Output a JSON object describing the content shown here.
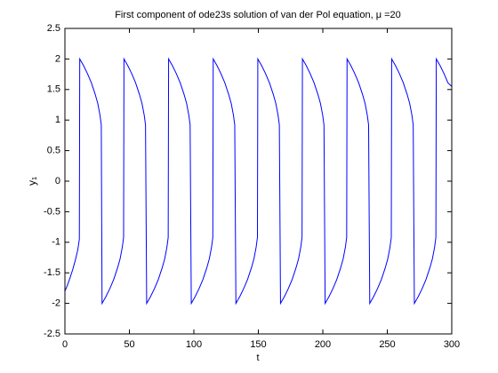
{
  "chart_data": {
    "type": "line",
    "title": "First component of ode23s solution of van der Pol equation, μ =20",
    "xlabel": "t",
    "ylabel": "y₁",
    "xlim": [
      0,
      300
    ],
    "xticks": [
      0,
      50,
      100,
      150,
      200,
      250,
      300
    ],
    "ylim": [
      -2.5,
      2.5
    ],
    "yticks": [
      -2.5,
      -2,
      -1.5,
      -1,
      -0.5,
      0,
      0.5,
      1,
      1.5,
      2,
      2.5
    ],
    "grid": false,
    "series": [
      {
        "name": "y1",
        "color": "#0000ff",
        "x": [
          0,
          2,
          4,
          6,
          8,
          10,
          11.2,
          11.5,
          14.5,
          17.5,
          20.5,
          23.5,
          25.5,
          27.2,
          28.2,
          28.8,
          31.8,
          34.8,
          37.8,
          40.8,
          42.8,
          44.5,
          45.5,
          45.8,
          48.8,
          51.8,
          54.8,
          57.8,
          59.8,
          61.5,
          62.5,
          63.4,
          66.4,
          69.4,
          72.4,
          75.4,
          77.4,
          79.1,
          80.1,
          80.4,
          83.4,
          86.4,
          89.4,
          92.4,
          94.4,
          96.1,
          97.1,
          98,
          101,
          104,
          107,
          110,
          112,
          113.7,
          114.7,
          115,
          118,
          121,
          124,
          127,
          129,
          130.7,
          131.7,
          132.6,
          135.6,
          138.6,
          141.6,
          144.6,
          146.6,
          148.3,
          149.3,
          149.6,
          152.6,
          155.6,
          158.6,
          161.6,
          163.6,
          165.3,
          166.3,
          167.2,
          170.2,
          173.2,
          176.2,
          179.2,
          181.2,
          182.9,
          183.9,
          184.2,
          187.2,
          190.2,
          193.2,
          196.2,
          198.2,
          199.9,
          200.9,
          201.8,
          204.8,
          207.8,
          210.8,
          213.8,
          215.8,
          217.5,
          218.5,
          218.8,
          221.8,
          224.8,
          227.8,
          230.8,
          232.8,
          234.5,
          235.5,
          236.4,
          239.4,
          242.4,
          245.4,
          248.4,
          250.4,
          252.1,
          253.1,
          253.4,
          256.4,
          259.4,
          262.4,
          265.4,
          267.4,
          269.1,
          270.1,
          271,
          274,
          277,
          280,
          283,
          285,
          286.7,
          287.7,
          288,
          291,
          294,
          297,
          300
        ],
        "values": [
          -1.8,
          -1.7,
          -1.58,
          -1.45,
          -1.3,
          -1.12,
          -0.95,
          2,
          1.89,
          1.76,
          1.61,
          1.42,
          1.27,
          1.08,
          0.92,
          -2,
          -1.89,
          -1.76,
          -1.61,
          -1.42,
          -1.27,
          -1.08,
          -0.92,
          2,
          1.89,
          1.76,
          1.61,
          1.42,
          1.27,
          1.08,
          0.92,
          -2,
          -1.89,
          -1.76,
          -1.61,
          -1.42,
          -1.27,
          -1.08,
          -0.92,
          2,
          1.89,
          1.76,
          1.61,
          1.42,
          1.27,
          1.08,
          0.92,
          -2,
          -1.89,
          -1.76,
          -1.61,
          -1.42,
          -1.27,
          -1.08,
          -0.92,
          2,
          1.89,
          1.76,
          1.61,
          1.42,
          1.27,
          1.08,
          0.92,
          -2,
          -1.89,
          -1.76,
          -1.61,
          -1.42,
          -1.27,
          -1.08,
          -0.92,
          2,
          1.89,
          1.76,
          1.61,
          1.42,
          1.27,
          1.08,
          0.92,
          -2,
          -1.89,
          -1.76,
          -1.61,
          -1.42,
          -1.27,
          -1.08,
          -0.92,
          2,
          1.89,
          1.76,
          1.61,
          1.42,
          1.27,
          1.08,
          0.92,
          -2,
          -1.89,
          -1.76,
          -1.61,
          -1.42,
          -1.27,
          -1.08,
          -0.92,
          2,
          1.89,
          1.76,
          1.61,
          1.42,
          1.27,
          1.08,
          0.92,
          -2,
          -1.89,
          -1.76,
          -1.61,
          -1.42,
          -1.27,
          -1.08,
          -0.92,
          2,
          1.89,
          1.76,
          1.61,
          1.42,
          1.27,
          1.08,
          0.92,
          -2,
          -1.89,
          -1.76,
          -1.61,
          -1.42,
          -1.27,
          -1.08,
          -0.92,
          2,
          1.89,
          1.76,
          1.61,
          1.55
        ]
      }
    ]
  }
}
